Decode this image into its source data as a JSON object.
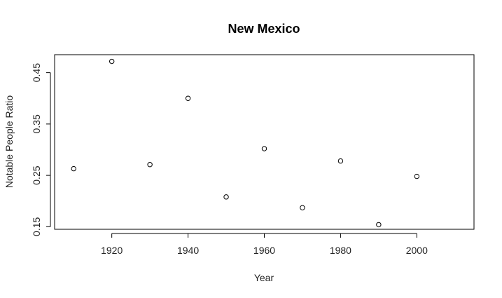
{
  "chart_data": {
    "type": "scatter",
    "title": "New Mexico",
    "xlabel": "Year",
    "ylabel": "Notable People Ratio",
    "xlim": [
      1905,
      2015
    ],
    "ylim": [
      0.145,
      0.485
    ],
    "xticks": [
      1920,
      1940,
      1960,
      1980,
      2000
    ],
    "yticks": [
      0.15,
      0.25,
      0.35,
      0.45
    ],
    "ytick_labels": [
      "0.15",
      "0.25",
      "0.35",
      "0.45"
    ],
    "grid": false,
    "x": [
      1910,
      1920,
      1930,
      1940,
      1950,
      1960,
      1970,
      1980,
      1990,
      2000
    ],
    "y": [
      0.263,
      0.472,
      0.271,
      0.4,
      0.208,
      0.302,
      0.187,
      0.278,
      0.154,
      0.248
    ]
  }
}
